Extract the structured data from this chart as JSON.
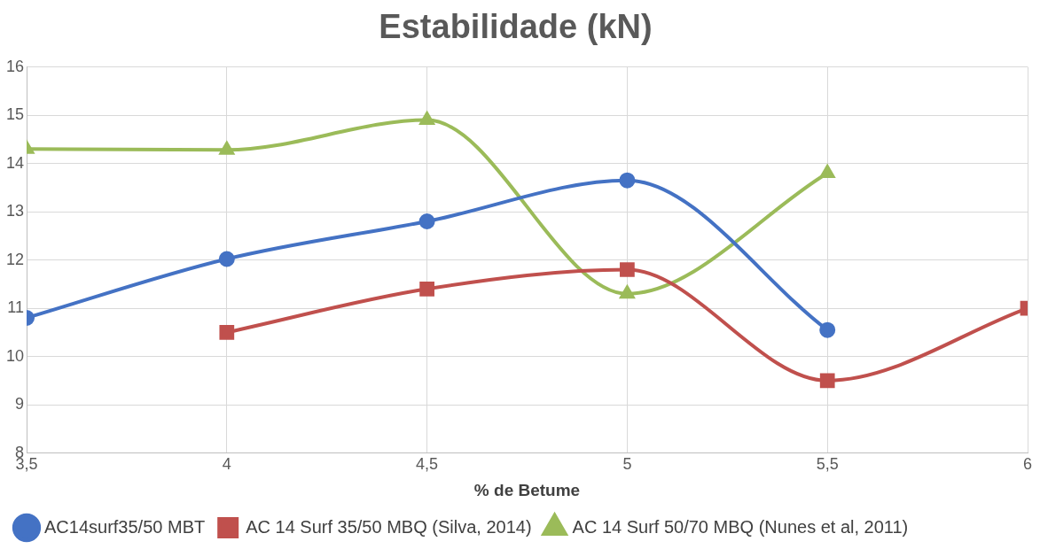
{
  "chart_data": {
    "type": "line",
    "title": "Estabilidade (kN)",
    "xlabel": "% de Betume",
    "series": [
      {
        "name": "AC14surf35/50 MBT",
        "color": "#4472c4",
        "marker": "circle",
        "x": [
          3.5,
          4,
          4.5,
          5,
          5.5
        ],
        "values": [
          10.8,
          12.02,
          12.8,
          13.65,
          10.55
        ]
      },
      {
        "name": "AC 14 Surf 35/50 MBQ (Silva, 2014)",
        "color": "#c0504d",
        "marker": "square",
        "x": [
          4,
          4.5,
          5,
          5.5,
          6
        ],
        "values": [
          10.5,
          11.4,
          11.8,
          9.5,
          11.0
        ]
      },
      {
        "name": "AC 14 Surf 50/70 MBQ (Nunes et al, 2011)",
        "color": "#9bbb59",
        "marker": "triangle",
        "x": [
          3.5,
          4,
          4.5,
          5,
          5.5
        ],
        "values": [
          14.3,
          14.28,
          14.9,
          11.3,
          13.8
        ]
      }
    ],
    "xlim": [
      3.5,
      6
    ],
    "xticks": [
      {
        "value": 3.5,
        "label": "3,5"
      },
      4,
      {
        "value": 4.5,
        "label": "4,5"
      },
      5,
      {
        "value": 5.5,
        "label": "5,5"
      },
      6
    ],
    "ylim": [
      8,
      16
    ],
    "yticks": [
      8,
      9,
      10,
      11,
      12,
      13,
      14,
      15,
      16
    ],
    "grid": true,
    "legend": "bottom"
  }
}
